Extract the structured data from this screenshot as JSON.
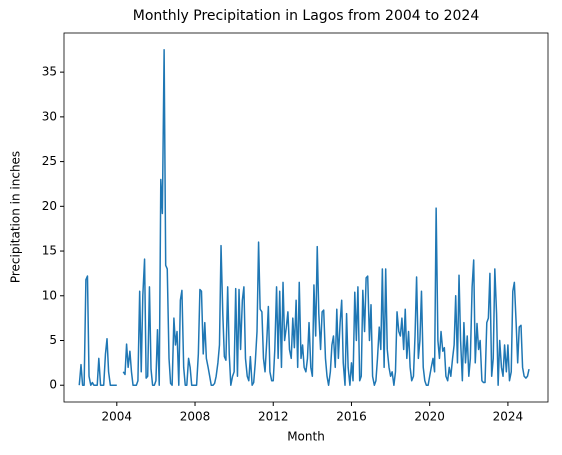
{
  "chart_data": {
    "type": "line",
    "title": "Monthly Precipitation in Lagos from 2004 to 2024",
    "x_label": "Month",
    "y_label": "Precipitation in inches",
    "x": [
      2002.08,
      2002.17,
      2002.25,
      2002.33,
      2002.42,
      2002.5,
      2002.58,
      2002.67,
      2002.75,
      2002.83,
      2002.92,
      2003.0,
      2003.08,
      2003.17,
      2003.25,
      2003.33,
      2003.42,
      2003.5,
      2003.58,
      2003.67,
      2003.75,
      2003.83,
      2003.92,
      2004.0,
      2004.08,
      2004.17,
      2004.25,
      2004.33,
      2004.42,
      2004.5,
      2004.58,
      2004.67,
      2004.75,
      2004.83,
      2004.92,
      2005.0,
      2005.08,
      2005.17,
      2005.25,
      2005.33,
      2005.42,
      2005.5,
      2005.58,
      2005.67,
      2005.75,
      2005.83,
      2005.92,
      2006.0,
      2006.08,
      2006.17,
      2006.25,
      2006.33,
      2006.42,
      2006.5,
      2006.58,
      2006.67,
      2006.75,
      2006.83,
      2006.92,
      2007.0,
      2007.08,
      2007.17,
      2007.25,
      2007.33,
      2007.42,
      2007.5,
      2007.58,
      2007.67,
      2007.75,
      2007.83,
      2007.92,
      2008.0,
      2008.08,
      2008.17,
      2008.25,
      2008.33,
      2008.42,
      2008.5,
      2008.58,
      2008.67,
      2008.75,
      2008.83,
      2008.92,
      2009.0,
      2009.08,
      2009.17,
      2009.25,
      2009.33,
      2009.42,
      2009.5,
      2009.58,
      2009.67,
      2009.75,
      2009.83,
      2009.92,
      2010.0,
      2010.08,
      2010.17,
      2010.25,
      2010.33,
      2010.42,
      2010.5,
      2010.58,
      2010.67,
      2010.75,
      2010.83,
      2010.92,
      2011.0,
      2011.08,
      2011.17,
      2011.25,
      2011.33,
      2011.42,
      2011.5,
      2011.58,
      2011.67,
      2011.75,
      2011.83,
      2011.92,
      2012.0,
      2012.08,
      2012.17,
      2012.25,
      2012.33,
      2012.42,
      2012.5,
      2012.58,
      2012.67,
      2012.75,
      2012.83,
      2012.92,
      2013.0,
      2013.08,
      2013.17,
      2013.25,
      2013.33,
      2013.42,
      2013.5,
      2013.58,
      2013.67,
      2013.75,
      2013.83,
      2013.92,
      2014.0,
      2014.08,
      2014.17,
      2014.25,
      2014.33,
      2014.42,
      2014.5,
      2014.58,
      2014.67,
      2014.75,
      2014.83,
      2014.92,
      2015.0,
      2015.08,
      2015.17,
      2015.25,
      2015.33,
      2015.42,
      2015.5,
      2015.58,
      2015.67,
      2015.75,
      2015.83,
      2015.92,
      2016.0,
      2016.08,
      2016.17,
      2016.25,
      2016.33,
      2016.42,
      2016.5,
      2016.58,
      2016.67,
      2016.75,
      2016.83,
      2016.92,
      2017.0,
      2017.08,
      2017.17,
      2017.25,
      2017.33,
      2017.42,
      2017.5,
      2017.58,
      2017.67,
      2017.75,
      2017.83,
      2017.92,
      2018.0,
      2018.08,
      2018.17,
      2018.25,
      2018.33,
      2018.42,
      2018.5,
      2018.58,
      2018.67,
      2018.75,
      2018.83,
      2018.92,
      2019.0,
      2019.08,
      2019.17,
      2019.25,
      2019.33,
      2019.42,
      2019.5,
      2019.58,
      2019.67,
      2019.75,
      2019.83,
      2019.92,
      2020.0,
      2020.08,
      2020.17,
      2020.25,
      2020.33,
      2020.42,
      2020.5,
      2020.58,
      2020.67,
      2020.75,
      2020.83,
      2020.92,
      2021.0,
      2021.08,
      2021.17,
      2021.25,
      2021.33,
      2021.42,
      2021.5,
      2021.58,
      2021.67,
      2021.75,
      2021.83,
      2021.92,
      2022.0,
      2022.08,
      2022.17,
      2022.25,
      2022.33,
      2022.42,
      2022.5,
      2022.58,
      2022.67,
      2022.75,
      2022.83,
      2022.92,
      2023.0,
      2023.08,
      2023.17,
      2023.25,
      2023.33,
      2023.42,
      2023.5,
      2023.58,
      2023.67,
      2023.75,
      2023.83,
      2023.92,
      2024.0,
      2024.08,
      2024.17,
      2024.25,
      2024.33,
      2024.42,
      2024.5,
      2024.58,
      2024.67,
      2024.75,
      2024.83,
      2024.92,
      2025.0,
      2025.08
    ],
    "series": [
      {
        "color": "#1f77b4",
        "values": [
          0,
          2.3,
          0,
          0,
          11.8,
          12.2,
          1,
          0,
          0.3,
          0,
          0,
          0,
          3,
          0,
          0,
          0,
          3.5,
          5.2,
          1.5,
          0,
          0,
          0,
          0,
          0,
          null,
          null,
          null,
          1.5,
          1.2,
          4.6,
          2,
          3.8,
          1.5,
          0,
          0,
          0,
          0.5,
          10.5,
          1.5,
          10,
          14.1,
          0.8,
          1,
          11,
          1.8,
          0,
          0,
          0.5,
          6.2,
          0,
          23,
          19.2,
          37.5,
          13.4,
          13,
          3,
          0.2,
          0,
          7.5,
          4.5,
          6,
          0,
          9.5,
          10.6,
          2,
          0,
          0,
          3,
          2,
          0,
          0,
          0,
          0,
          3.5,
          10.7,
          10.5,
          3.5,
          7,
          3,
          2,
          1,
          0,
          0,
          0.2,
          1,
          2.5,
          4.5,
          15.6,
          8,
          3.2,
          2.8,
          11,
          3.5,
          0,
          1,
          1.5,
          10.8,
          1,
          10.7,
          4,
          9.5,
          11,
          3,
          1,
          0.5,
          3.2,
          0,
          0.3,
          2.5,
          6,
          16,
          8.5,
          8.2,
          3,
          1.5,
          5,
          8.8,
          1.5,
          0.5,
          0.5,
          4,
          11,
          3,
          10.5,
          2,
          11.5,
          5,
          6.5,
          8.2,
          4,
          3,
          7.5,
          4.2,
          9.5,
          2,
          11.5,
          3,
          4.5,
          2,
          1.5,
          3,
          7,
          2,
          1,
          11.2,
          5.5,
          15.5,
          8,
          4,
          8.2,
          8.4,
          3,
          1,
          0,
          1.5,
          4.5,
          5.5,
          2,
          8.5,
          3,
          7,
          9.5,
          2.5,
          0,
          8,
          2,
          0,
          2.5,
          0.5,
          10.4,
          5,
          11,
          0.5,
          1,
          10.6,
          6,
          12,
          12.2,
          5,
          9,
          1,
          0,
          0.5,
          3,
          6.5,
          4,
          13,
          2,
          13,
          4,
          2,
          1,
          1.5,
          0,
          1.5,
          8.2,
          6,
          5.5,
          7.5,
          4,
          8.5,
          3,
          6,
          2,
          0.5,
          1,
          5.5,
          12.1,
          3,
          5,
          10.5,
          2,
          0.5,
          0,
          0,
          1,
          2,
          3,
          1.5,
          19.8,
          5,
          3,
          6,
          3.8,
          4.2,
          1,
          0.5,
          2,
          1,
          3,
          4.5,
          10,
          2.5,
          12.3,
          5,
          0.5,
          7,
          2.5,
          5.5,
          1,
          3,
          11,
          14,
          2.5,
          6.9,
          4,
          5,
          0.5,
          0.3,
          0.3,
          7,
          7.5,
          12.5,
          1,
          3,
          13,
          8,
          0,
          5,
          2,
          1,
          4.5,
          1.5,
          4.5,
          0.5,
          1.5,
          10.5,
          11.5,
          7,
          2.5,
          6.5,
          6.7,
          2,
          1,
          0.8,
          1,
          1.8
        ]
      }
    ],
    "xlim": [
      2001.3,
      2026.05
    ],
    "xticks": [
      2004,
      2008,
      2012,
      2016,
      2020,
      2024
    ],
    "ylim": [
      -1.875,
      39.375
    ],
    "yticks": [
      0,
      5,
      10,
      15,
      20,
      25,
      30,
      35
    ]
  }
}
